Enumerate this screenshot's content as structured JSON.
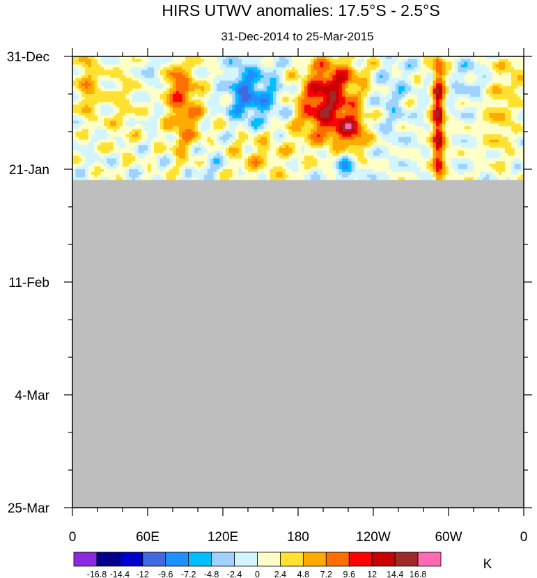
{
  "chart_data": {
    "type": "heatmap",
    "title": "HIRS UTWV anomalies: 17.5°S - 2.5°S",
    "subtitle": "31-Dec-2014 to 25-Mar-2015",
    "x_ticks": [
      "0",
      "60E",
      "120E",
      "180",
      "120W",
      "60W",
      "0"
    ],
    "x_range": [
      0,
      360
    ],
    "x_tick_values": [
      0,
      60,
      120,
      180,
      240,
      300,
      360
    ],
    "y_ticks": [
      "31-Dec",
      "21-Jan",
      "11-Feb",
      "4-Mar",
      "25-Mar"
    ],
    "y_tick_days": [
      0,
      21,
      42,
      63,
      84
    ],
    "y_range_days": [
      0,
      84
    ],
    "data_valid_until_day": 23,
    "missing_color": "#bebebe",
    "colorbar": {
      "unit": "K",
      "levels": [
        "-16.8",
        "-14.4",
        "-12",
        "-9.6",
        "-7.2",
        "-4.8",
        "-2.4",
        "0",
        "2.4",
        "4.8",
        "7.2",
        "9.6",
        "12",
        "14.4",
        "16.8"
      ],
      "colors": [
        "#8a2be2",
        "#00008b",
        "#0000cd",
        "#4169e1",
        "#1e90ff",
        "#00bfff",
        "#a0d2ff",
        "#d2f5ff",
        "#ffffc8",
        "#ffe132",
        "#ffaa00",
        "#ff6e00",
        "#ff0000",
        "#c80000",
        "#a02828",
        "#ff69b4"
      ]
    },
    "features": [
      {
        "lon": 200,
        "day": 10,
        "amp": 12,
        "slon": 14,
        "sday": 4
      },
      {
        "lon": 222,
        "day": 14,
        "amp": 11,
        "slon": 9,
        "sday": 3
      },
      {
        "lon": 210,
        "day": 4,
        "amp": 8,
        "slon": 16,
        "sday": 3
      },
      {
        "lon": 292,
        "day": 12,
        "amp": 13,
        "slon": 3.5,
        "sday": 12
      },
      {
        "lon": 90,
        "day": 11,
        "amp": 7,
        "slon": 10,
        "sday": 6
      },
      {
        "lon": 82,
        "day": 5,
        "amp": 5,
        "slon": 8,
        "sday": 3
      },
      {
        "lon": 12,
        "day": 5,
        "amp": 6,
        "slon": 6,
        "sday": 5
      },
      {
        "lon": 40,
        "day": 9,
        "amp": 3,
        "slon": 10,
        "sday": 6
      },
      {
        "lon": 137,
        "day": 7,
        "amp": -8,
        "slon": 9,
        "sday": 4
      },
      {
        "lon": 155,
        "day": 8,
        "amp": -5,
        "slon": 10,
        "sday": 4
      },
      {
        "lon": 148,
        "day": 18,
        "amp": 4,
        "slon": 20,
        "sday": 4
      },
      {
        "lon": 218,
        "day": 20,
        "amp": -7,
        "slon": 5,
        "sday": 3
      },
      {
        "lon": 340,
        "day": 10,
        "amp": 4,
        "slon": 10,
        "sday": 7
      },
      {
        "lon": 320,
        "day": 5,
        "amp": -3,
        "slon": 10,
        "sday": 3
      },
      {
        "lon": 65,
        "day": 3,
        "amp": -3,
        "slon": 6,
        "sday": 3
      },
      {
        "lon": 110,
        "day": 20,
        "amp": -3,
        "slon": 10,
        "sday": 3
      },
      {
        "lon": 255,
        "day": 8,
        "amp": -3,
        "slon": 8,
        "sday": 5
      },
      {
        "lon": 355,
        "day": 3,
        "amp": 3,
        "slon": 5,
        "sday": 3
      }
    ]
  }
}
